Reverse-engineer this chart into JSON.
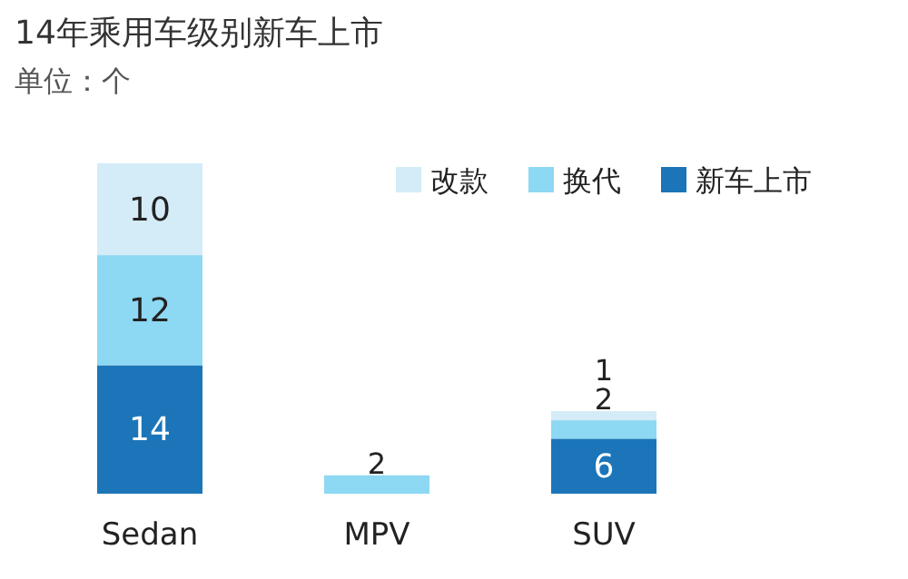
{
  "chart_data": {
    "type": "bar",
    "title": "14年乘用车级别新车上市",
    "subtitle": "单位：个",
    "categories": [
      "Sedan",
      "MPV",
      "SUV"
    ],
    "stacked": true,
    "data_labels": true,
    "legend": "top right",
    "series": [
      {
        "name": "新车上市",
        "color": "#1b75b8",
        "values": [
          14,
          null,
          6
        ]
      },
      {
        "name": "换代",
        "color": "#8dd8f2",
        "values": [
          12,
          2,
          2
        ]
      },
      {
        "name": "改款",
        "color": "#d3ecf8",
        "values": [
          10,
          null,
          1
        ]
      }
    ]
  }
}
